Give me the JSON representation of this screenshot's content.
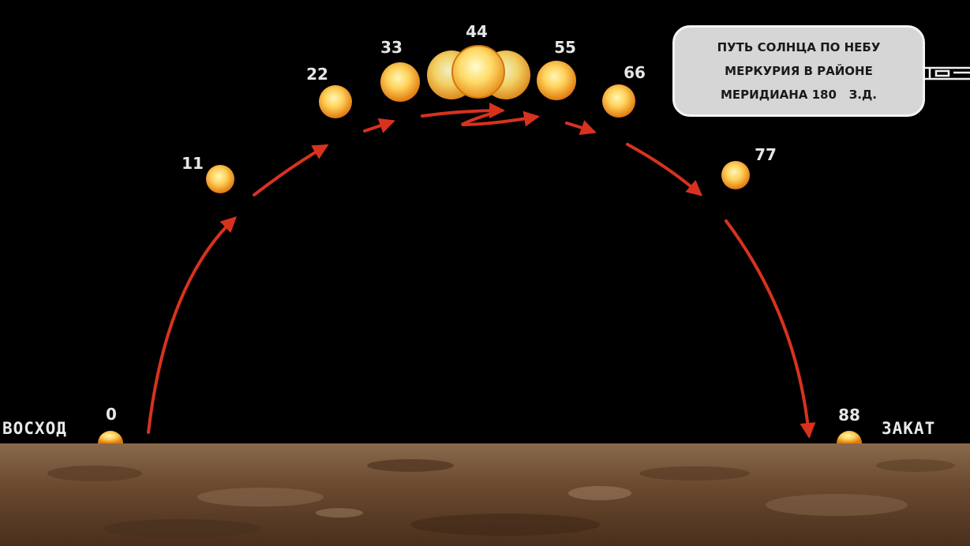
{
  "title": {
    "line1": "ПУТЬ СОЛНЦА ПО НЕБУ",
    "line2": "МЕРКУРИЯ В РАЙОНЕ",
    "line3": "МЕРИДИАНА 180   З.Д."
  },
  "labels": {
    "sunrise": "ВОСХОД",
    "sunset": "ЗАКАТ"
  },
  "sun_positions": [
    {
      "label": "0"
    },
    {
      "label": "11"
    },
    {
      "label": "22"
    },
    {
      "label": "33"
    },
    {
      "label": "44"
    },
    {
      "label": "55"
    },
    {
      "label": "66"
    },
    {
      "label": "77"
    },
    {
      "label": "88"
    }
  ],
  "colors": {
    "sky": "#000000",
    "arrow": "#d8321e",
    "sun_core": "#ffe07a",
    "sun_edge": "#e07d10",
    "ground": "#6b4a30"
  }
}
